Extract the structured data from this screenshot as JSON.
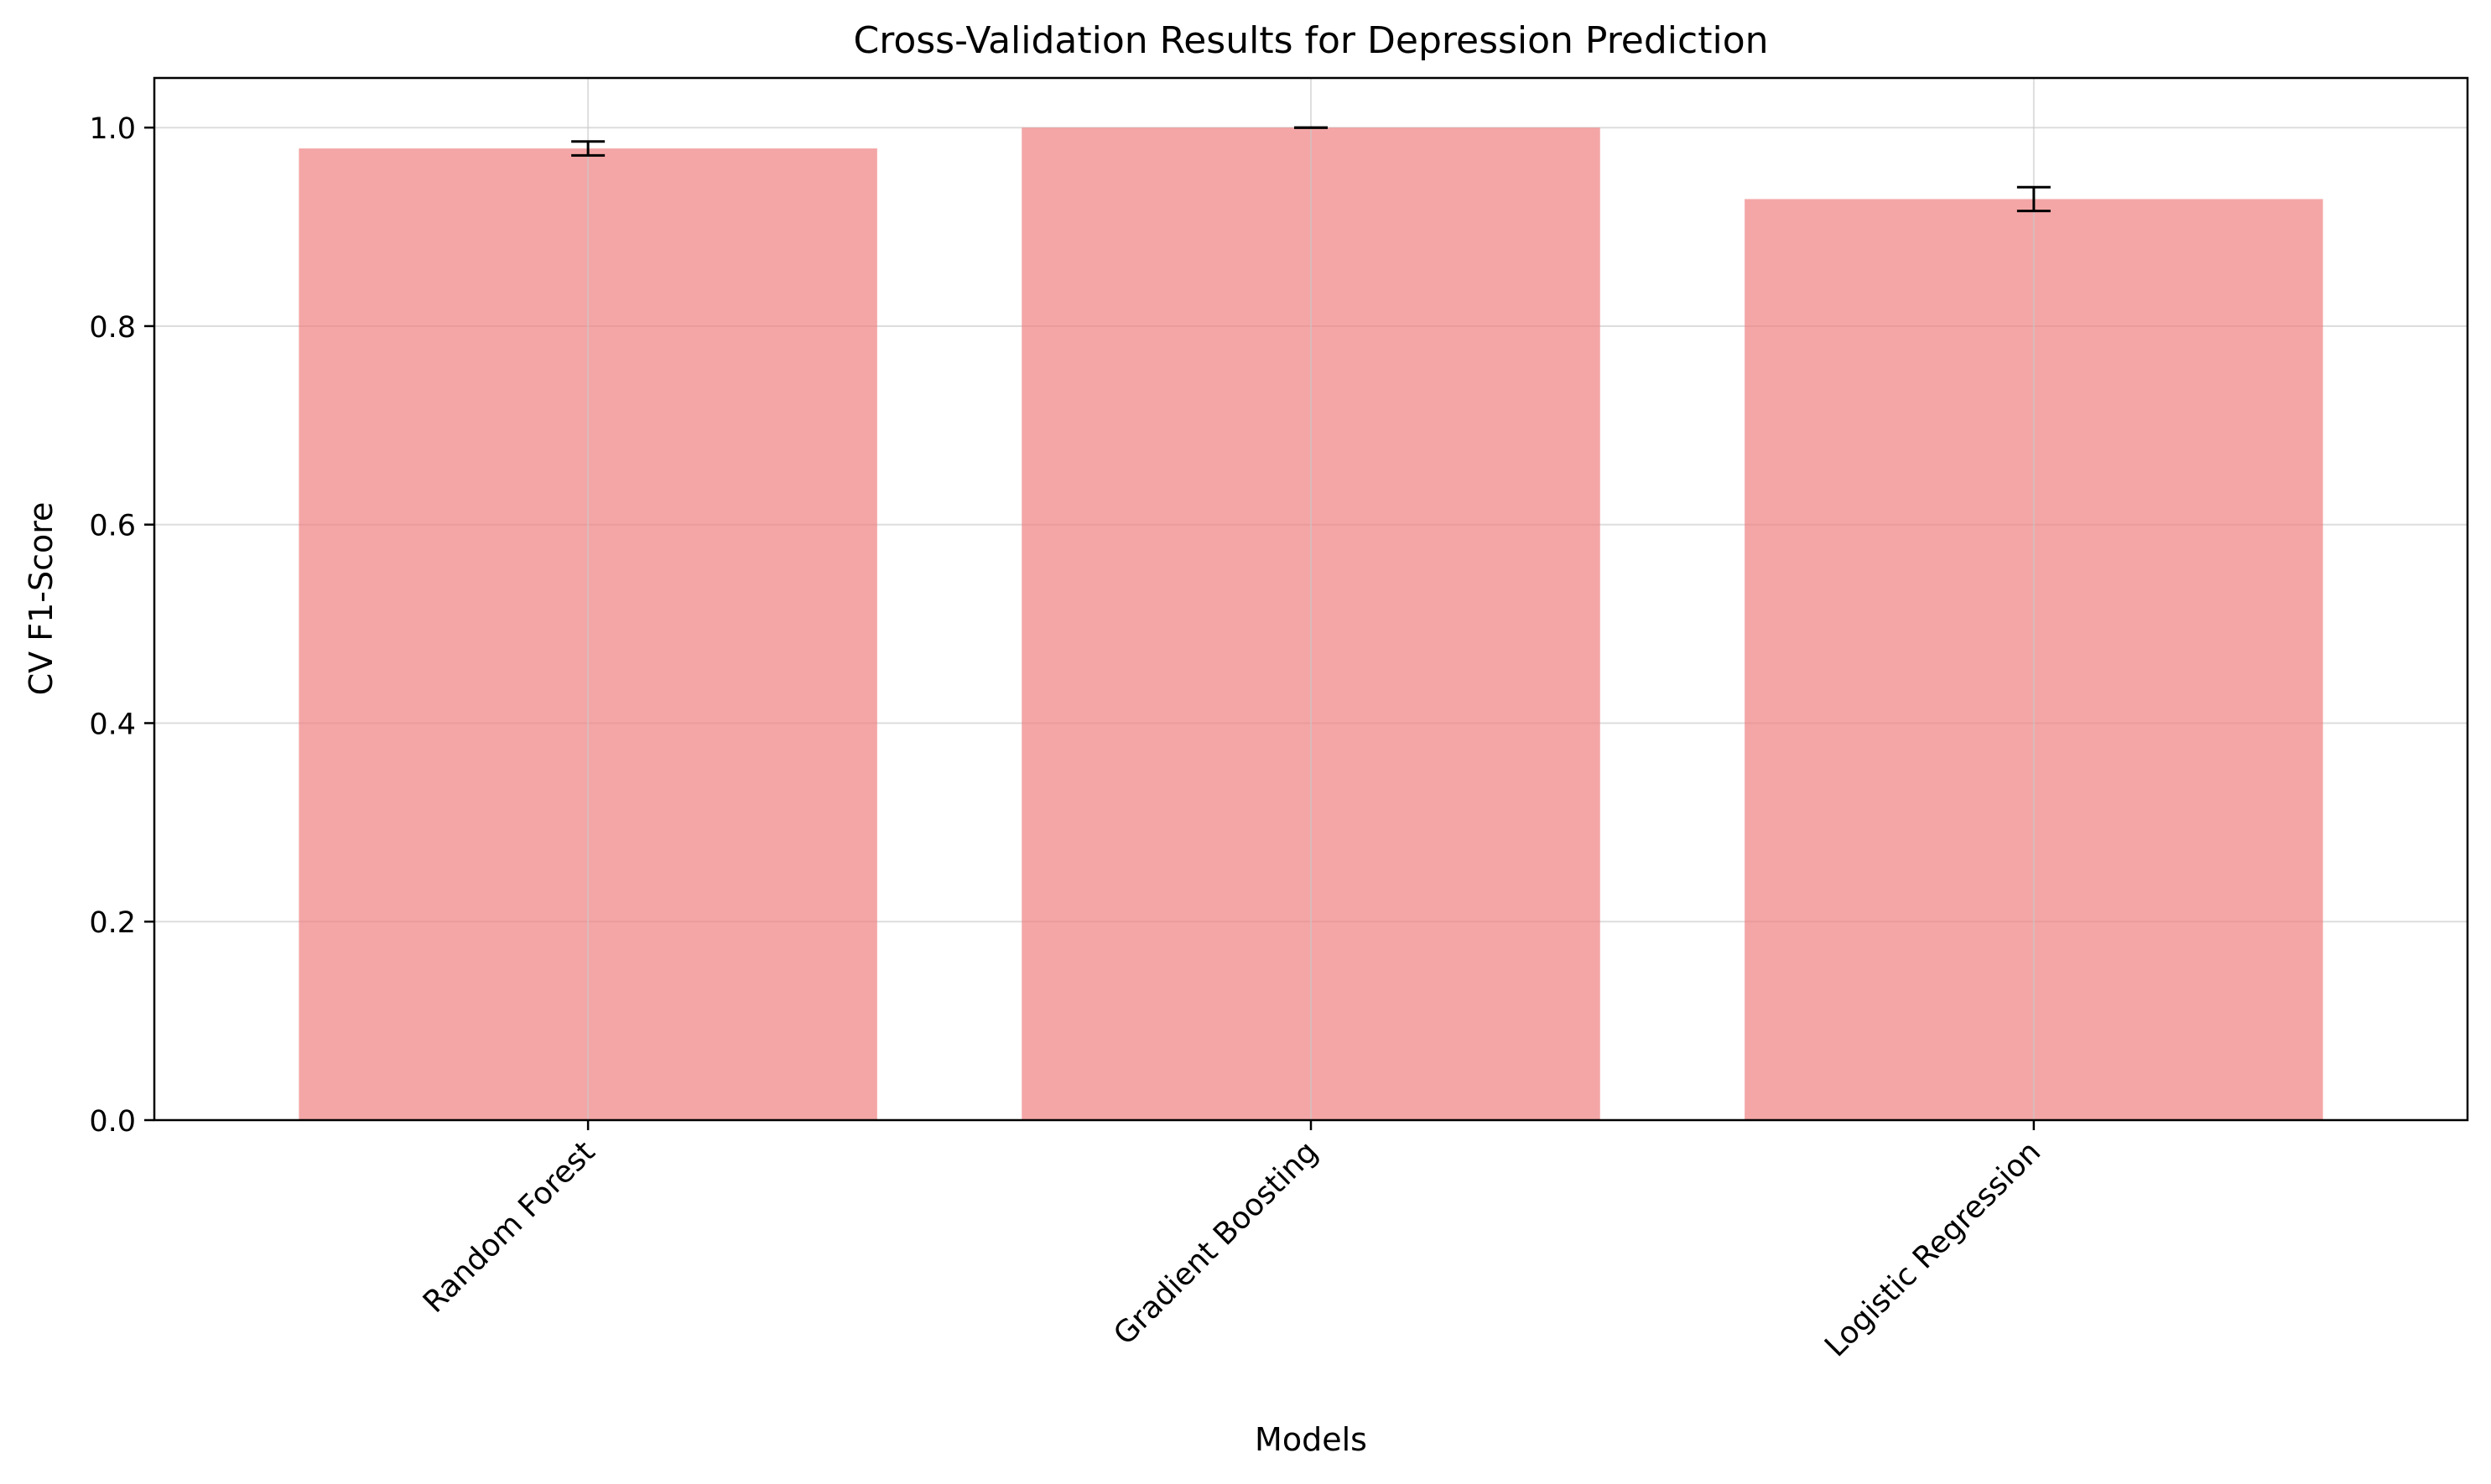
{
  "chart_data": {
    "type": "bar",
    "title": "Cross-Validation Results for Depression Prediction",
    "xlabel": "Models",
    "ylabel": "CV F1-Score",
    "categories": [
      "Random Forest",
      "Gradient Boosting",
      "Logistic Regression"
    ],
    "values": [
      0.979,
      1.0,
      0.928
    ],
    "errors": [
      0.007,
      0.0,
      0.012
    ],
    "ylim": [
      0,
      1.05
    ],
    "yticks": [
      0.0,
      0.2,
      0.4,
      0.6,
      0.8,
      1.0
    ],
    "ytick_labels": [
      "0.0",
      "0.2",
      "0.4",
      "0.6",
      "0.8",
      "1.0"
    ],
    "grid": true,
    "colors": {
      "bar": "#f08080",
      "bar_opacity": 0.7,
      "error": "#000000",
      "grid": "#dddddd"
    }
  }
}
